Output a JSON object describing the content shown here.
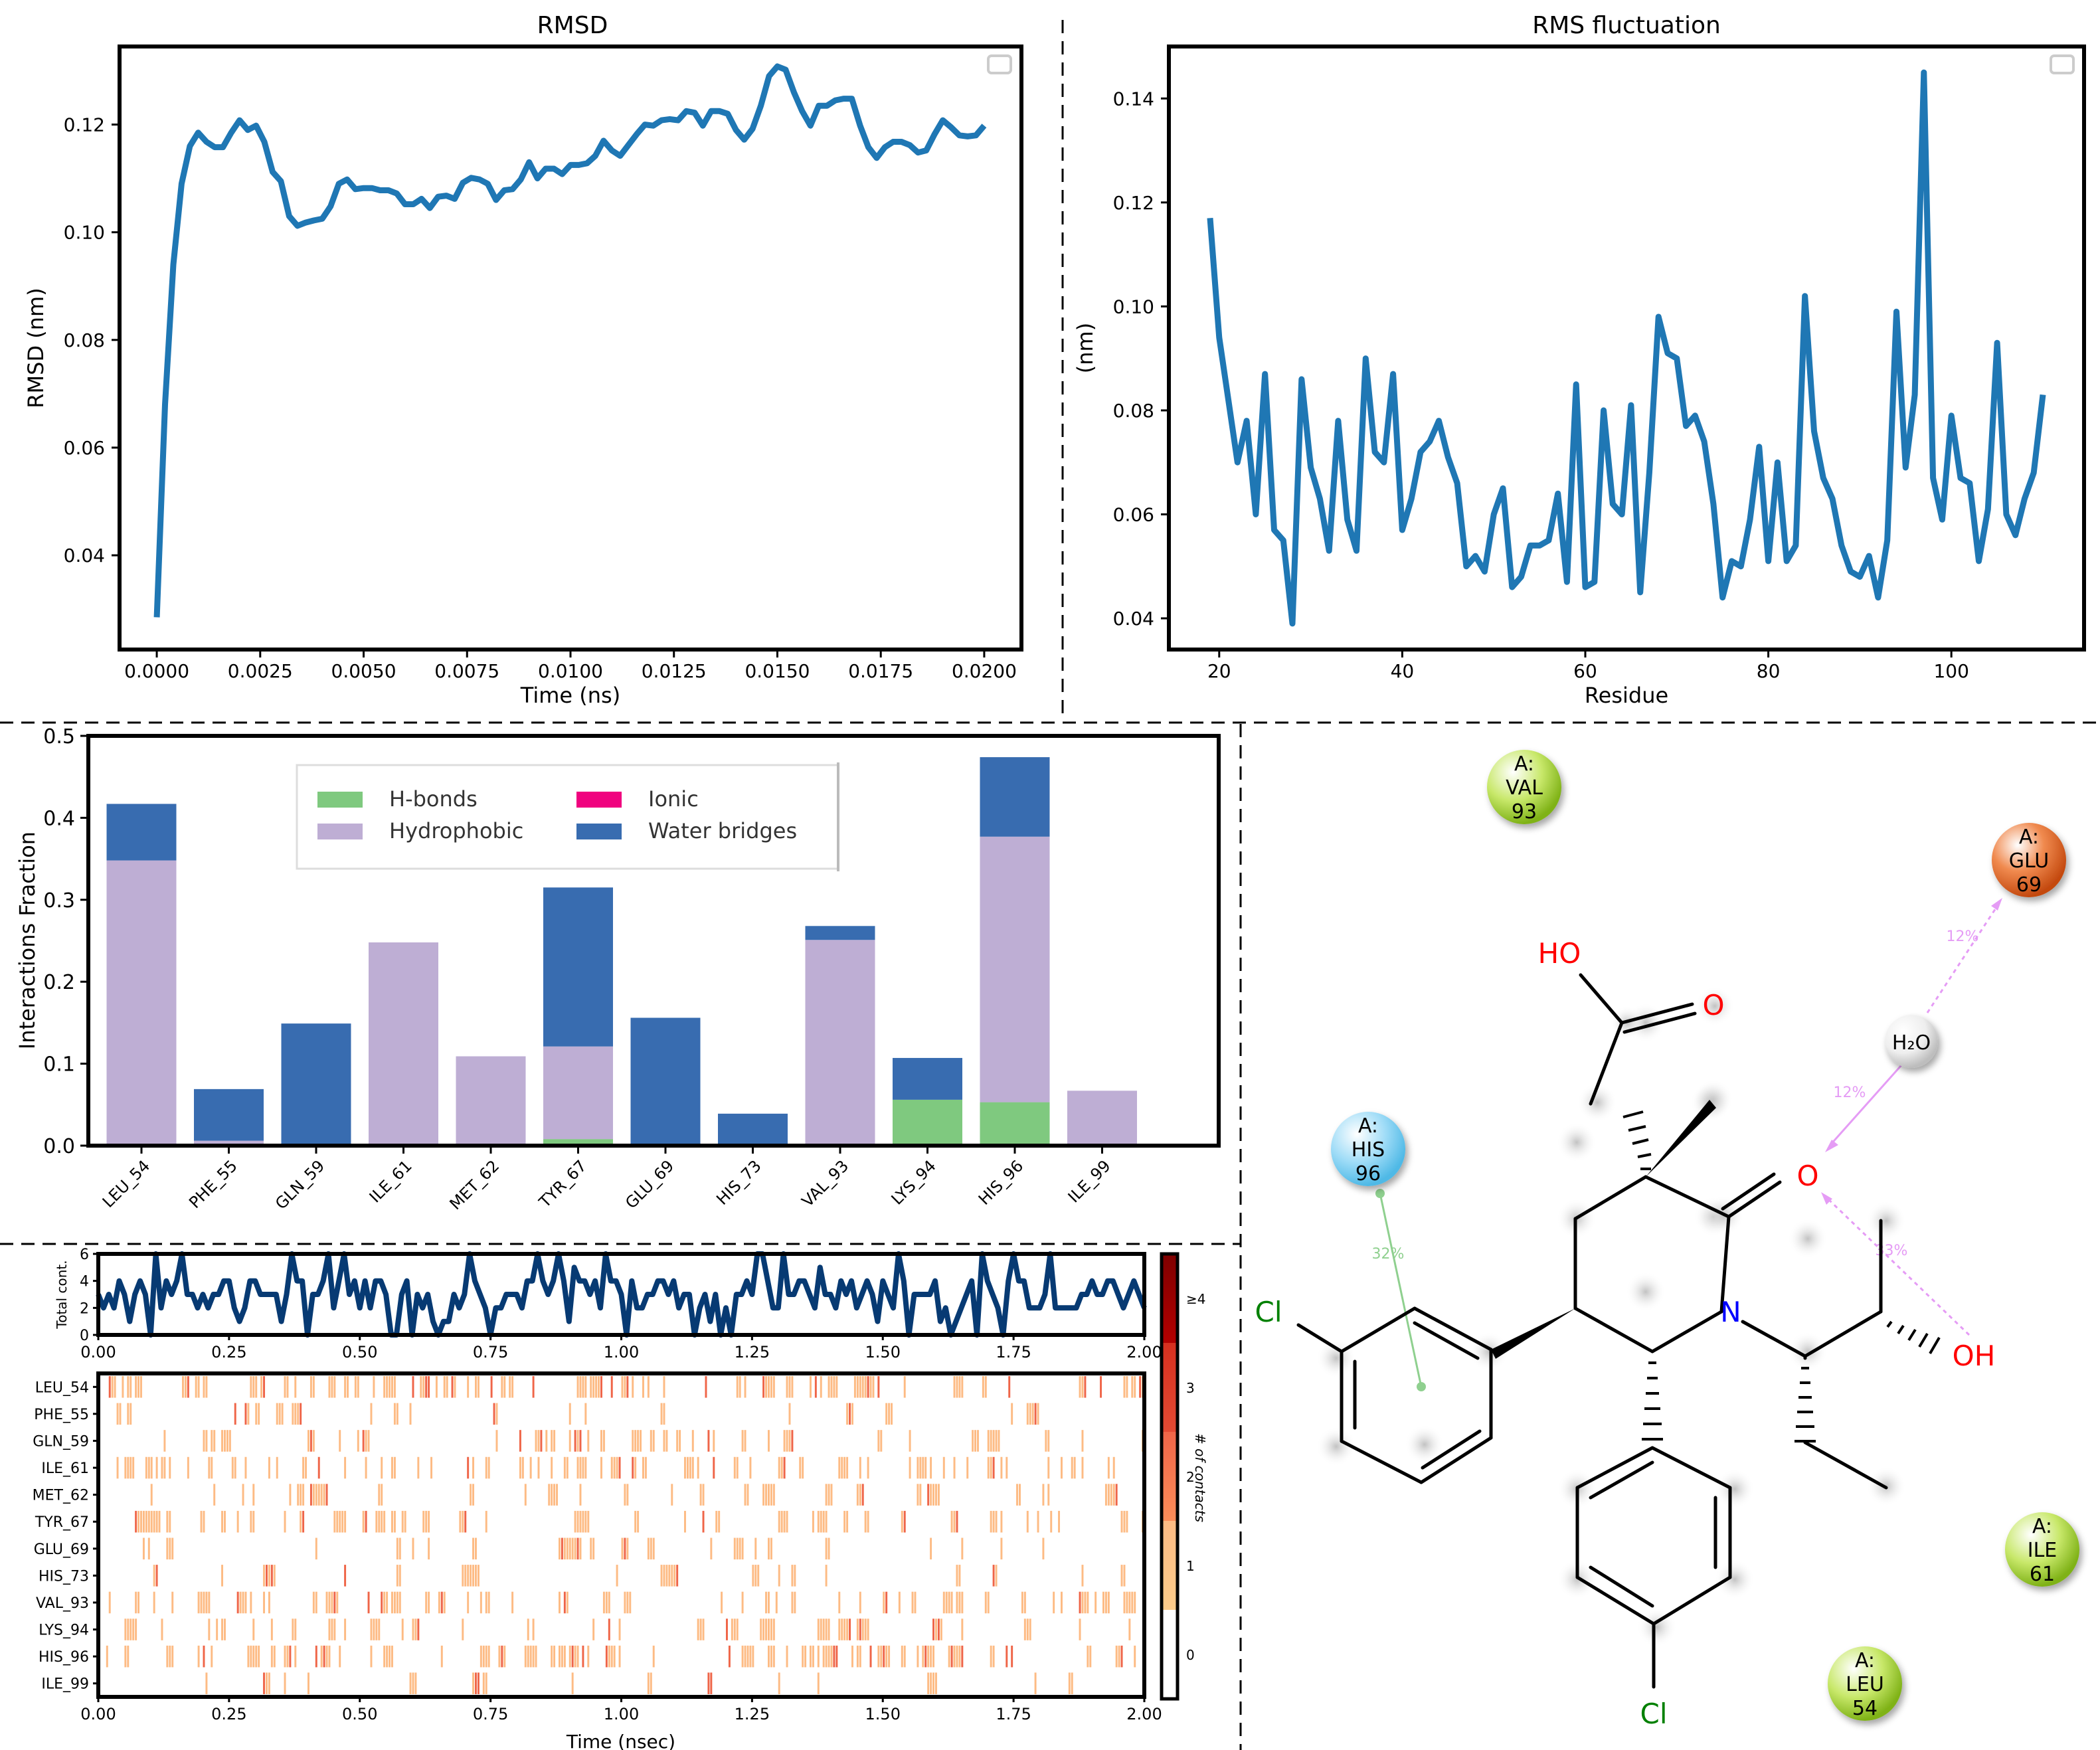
{
  "colors": {
    "line": "#1f77b4",
    "hbond": "#7fc97f",
    "hydrophobic": "#beaed4",
    "ionic": "#f0027f",
    "water": "#386cb0",
    "contact_line": "#073a73",
    "heat": [
      "#ffffff",
      "#fdbb84",
      "#ef6548",
      "#d7301f",
      "#7f0000"
    ],
    "lig_red": "#ff0000",
    "lig_blue": "#0000ff",
    "lig_green": "#008000",
    "res_green": "#a6d22e",
    "res_orange": "#e0611d",
    "res_cyan": "#6ccff6",
    "res_water": "#dddddd",
    "int_pink": "#e59cf5",
    "int_green": "#8fd08f"
  },
  "chart_data": [
    {
      "id": "rmsd",
      "type": "line",
      "title": "RMSD",
      "xlabel": "Time (ns)",
      "ylabel": "RMSD (nm)",
      "xlim": [
        -0.0009,
        0.0209
      ],
      "ylim": [
        0.0225,
        0.1345
      ],
      "xticks": [
        0.0,
        0.0025,
        0.005,
        0.0075,
        0.01,
        0.0125,
        0.015,
        0.0175,
        0.02
      ],
      "xtick_labels": [
        "0.0000",
        "0.0025",
        "0.0050",
        "0.0075",
        "0.0100",
        "0.0125",
        "0.0150",
        "0.0175",
        "0.0200"
      ],
      "yticks": [
        0.04,
        0.06,
        0.08,
        0.1,
        0.12
      ],
      "ytick_labels": [
        "0.04",
        "0.06",
        "0.08",
        "0.10",
        "0.12"
      ],
      "grid": false,
      "legend": "top-right (empty)",
      "x": [
        0.0,
        0.0002,
        0.0004,
        0.0006,
        0.0008,
        0.001,
        0.0012,
        0.0014,
        0.0016,
        0.0018,
        0.002,
        0.0022,
        0.0024,
        0.0026,
        0.0028,
        0.003,
        0.0032,
        0.0034,
        0.0036,
        0.0038,
        0.004,
        0.0042,
        0.0044,
        0.0046,
        0.0048,
        0.005,
        0.0052,
        0.0054,
        0.0056,
        0.0058,
        0.006,
        0.0062,
        0.0064,
        0.0066,
        0.0068,
        0.007,
        0.0072,
        0.0074,
        0.0076,
        0.0078,
        0.008,
        0.0082,
        0.0084,
        0.0086,
        0.0088,
        0.009,
        0.0092,
        0.0094,
        0.0096,
        0.0098,
        0.01,
        0.0102,
        0.0104,
        0.0106,
        0.0108,
        0.011,
        0.0112,
        0.0114,
        0.0116,
        0.0118,
        0.012,
        0.0122,
        0.0124,
        0.0126,
        0.0128,
        0.013,
        0.0132,
        0.0134,
        0.0136,
        0.0138,
        0.014,
        0.0142,
        0.0144,
        0.0146,
        0.0148,
        0.015,
        0.0152,
        0.0154,
        0.0156,
        0.0158,
        0.016,
        0.0162,
        0.0164,
        0.0166,
        0.0168,
        0.017,
        0.0172,
        0.0174,
        0.0176,
        0.0178,
        0.018,
        0.0182,
        0.0184,
        0.0186,
        0.0188,
        0.019,
        0.0192,
        0.0194,
        0.0196,
        0.0198,
        0.02
      ],
      "y": [
        0.0285,
        0.068,
        0.094,
        0.109,
        0.116,
        0.1185,
        0.1168,
        0.1158,
        0.1158,
        0.1185,
        0.1208,
        0.119,
        0.1198,
        0.1168,
        0.1112,
        0.1095,
        0.103,
        0.1012,
        0.1018,
        0.1022,
        0.1025,
        0.1048,
        0.109,
        0.1098,
        0.108,
        0.1082,
        0.1082,
        0.1078,
        0.1078,
        0.1072,
        0.1052,
        0.1052,
        0.1062,
        0.1045,
        0.1066,
        0.1068,
        0.1062,
        0.1092,
        0.1101,
        0.1098,
        0.109,
        0.106,
        0.1078,
        0.108,
        0.1098,
        0.113,
        0.11,
        0.1118,
        0.1118,
        0.1108,
        0.1125,
        0.1125,
        0.1128,
        0.1142,
        0.117,
        0.1152,
        0.1142,
        0.1162,
        0.1182,
        0.12,
        0.1198,
        0.1208,
        0.121,
        0.1208,
        0.1225,
        0.1222,
        0.1198,
        0.1225,
        0.1225,
        0.122,
        0.119,
        0.1172,
        0.1192,
        0.1235,
        0.129,
        0.1308,
        0.1302,
        0.126,
        0.1225,
        0.1198,
        0.1235,
        0.1235,
        0.1245,
        0.1248,
        0.1248,
        0.1198,
        0.1158,
        0.1138,
        0.1158,
        0.1168,
        0.1168,
        0.1162,
        0.1148,
        0.1152,
        0.1182,
        0.1208,
        0.1195,
        0.118,
        0.1178,
        0.118,
        0.1198
      ]
    },
    {
      "id": "rmsf",
      "type": "line",
      "title": "RMS fluctuation",
      "xlabel": "Residue",
      "ylabel": "(nm)",
      "xlim": [
        14.5,
        114.5
      ],
      "ylim": [
        0.034,
        0.15
      ],
      "xticks": [
        20,
        40,
        60,
        80,
        100
      ],
      "xtick_labels": [
        "20",
        "40",
        "60",
        "80",
        "100"
      ],
      "yticks": [
        0.04,
        0.06,
        0.08,
        0.1,
        0.12,
        0.14
      ],
      "ytick_labels": [
        "0.04",
        "0.06",
        "0.08",
        "0.10",
        "0.12",
        "0.14"
      ],
      "grid": false,
      "legend": "top-right (empty)",
      "x": [
        19,
        20,
        21,
        22,
        23,
        24,
        25,
        26,
        27,
        28,
        29,
        30,
        31,
        32,
        33,
        34,
        35,
        36,
        37,
        38,
        39,
        40,
        41,
        42,
        43,
        44,
        45,
        46,
        47,
        48,
        49,
        50,
        51,
        52,
        53,
        54,
        55,
        56,
        57,
        58,
        59,
        60,
        61,
        62,
        63,
        64,
        65,
        66,
        67,
        68,
        69,
        70,
        71,
        72,
        73,
        74,
        75,
        76,
        77,
        78,
        79,
        80,
        81,
        82,
        83,
        84,
        85,
        86,
        87,
        88,
        89,
        90,
        91,
        92,
        93,
        94,
        95,
        96,
        97,
        98,
        99,
        100,
        101,
        102,
        103,
        104,
        105,
        106,
        107,
        108,
        109,
        110
      ],
      "y": [
        0.117,
        0.094,
        0.082,
        0.07,
        0.078,
        0.06,
        0.087,
        0.057,
        0.055,
        0.039,
        0.086,
        0.069,
        0.063,
        0.053,
        0.078,
        0.059,
        0.053,
        0.09,
        0.072,
        0.07,
        0.087,
        0.057,
        0.063,
        0.072,
        0.074,
        0.078,
        0.071,
        0.066,
        0.05,
        0.052,
        0.049,
        0.06,
        0.065,
        0.046,
        0.048,
        0.054,
        0.054,
        0.055,
        0.064,
        0.047,
        0.085,
        0.046,
        0.047,
        0.08,
        0.062,
        0.06,
        0.081,
        0.045,
        0.068,
        0.098,
        0.091,
        0.09,
        0.077,
        0.079,
        0.074,
        0.062,
        0.044,
        0.051,
        0.05,
        0.059,
        0.073,
        0.051,
        0.07,
        0.051,
        0.054,
        0.102,
        0.076,
        0.067,
        0.063,
        0.054,
        0.049,
        0.048,
        0.052,
        0.044,
        0.055,
        0.099,
        0.069,
        0.083,
        0.145,
        0.067,
        0.059,
        0.079,
        0.067,
        0.066,
        0.051,
        0.061,
        0.093,
        0.06,
        0.056,
        0.063,
        0.068,
        0.083
      ]
    },
    {
      "id": "interactions",
      "type": "bar",
      "ylabel": "Interactions Fraction",
      "ylim": [
        0,
        0.5
      ],
      "yticks": [
        0.0,
        0.1,
        0.2,
        0.3,
        0.4,
        0.5
      ],
      "ytick_labels": [
        "0.0",
        "0.1",
        "0.2",
        "0.3",
        "0.4",
        "0.5"
      ],
      "legend": "top-center",
      "categories": [
        "LEU_54",
        "PHE_55",
        "GLN_59",
        "ILE_61",
        "MET_62",
        "TYR_67",
        "GLU_69",
        "HIS_73",
        "VAL_93",
        "LYS_94",
        "HIS_96",
        "ILE_99"
      ],
      "stacked": true,
      "series": [
        {
          "name": "H-bonds",
          "color_key": "hbond",
          "values": [
            0,
            0,
            0,
            0,
            0,
            0.008,
            0,
            0,
            0,
            0.056,
            0.053,
            0
          ]
        },
        {
          "name": "Hydrophobic",
          "color_key": "hydrophobic",
          "values": [
            0.348,
            0.006,
            0,
            0.248,
            0.109,
            0.113,
            0,
            0,
            0.251,
            0,
            0.324,
            0.067
          ]
        },
        {
          "name": "Ionic",
          "color_key": "ionic",
          "values": [
            0,
            0,
            0,
            0,
            0,
            0,
            0,
            0,
            0,
            0,
            0,
            0
          ]
        },
        {
          "name": "Water bridges",
          "color_key": "water",
          "values": [
            0.069,
            0.063,
            0.149,
            0,
            0,
            0.194,
            0.156,
            0.039,
            0.017,
            0.051,
            0.097,
            0
          ]
        }
      ]
    },
    {
      "id": "total_contacts",
      "type": "line",
      "ylabel": "Total cont.",
      "xlim": [
        0,
        2.0
      ],
      "ylim": [
        0,
        6
      ],
      "yticks": [
        0,
        2,
        4,
        6
      ],
      "ytick_labels": [
        "0",
        "2",
        "4",
        "6"
      ],
      "xticks": [
        0.0,
        0.25,
        0.5,
        0.75,
        1.0,
        1.25,
        1.5,
        1.75,
        2.0
      ],
      "xtick_labels": [
        "0.00",
        "0.25",
        "0.50",
        "0.75",
        "1.00",
        "1.25",
        "1.50",
        "1.75",
        "2.00"
      ],
      "sample_count": 200,
      "note_values": "approximately 0-6 contacts per frame, typically 2-4"
    },
    {
      "id": "contact_timeline",
      "type": "heatmap",
      "xlabel": "Time (nsec)",
      "xlim": [
        0,
        2.0
      ],
      "xticks": [
        0.0,
        0.25,
        0.5,
        0.75,
        1.0,
        1.25,
        1.5,
        1.75,
        2.0
      ],
      "xtick_labels": [
        "0.00",
        "0.25",
        "0.50",
        "0.75",
        "1.00",
        "1.25",
        "1.50",
        "1.75",
        "2.00"
      ],
      "rows": [
        "LEU_54",
        "PHE_55",
        "GLN_59",
        "ILE_61",
        "MET_62",
        "TYR_67",
        "GLU_69",
        "HIS_73",
        "VAL_93",
        "LYS_94",
        "HIS_96",
        "ILE_99"
      ],
      "row_density": [
        0.32,
        0.12,
        0.18,
        0.3,
        0.14,
        0.24,
        0.12,
        0.1,
        0.25,
        0.14,
        0.34,
        0.07
      ],
      "colorbar": {
        "label": "# of contacts",
        "ticks": [
          "0",
          "1",
          "2",
          "3",
          "≥4"
        ]
      }
    }
  ],
  "ligand_diagram": {
    "residues": [
      {
        "chain": "A:",
        "name": "VAL",
        "num": "93",
        "color_key": "res_green"
      },
      {
        "chain": "A:",
        "name": "GLU",
        "num": "69",
        "color_key": "res_orange"
      },
      {
        "chain": "A:",
        "name": "HIS",
        "num": "96",
        "color_key": "res_cyan"
      },
      {
        "chain": "A:",
        "name": "ILE",
        "num": "61",
        "color_key": "res_green"
      },
      {
        "chain": "A:",
        "name": "LEU",
        "num": "54",
        "color_key": "res_green"
      }
    ],
    "water": {
      "label": "H₂O"
    },
    "atoms": {
      "ho": "HO",
      "o_acid": "O",
      "o_keto": "O",
      "n": "N",
      "oh": "OH",
      "cl_top": "Cl",
      "cl_bottom": "Cl"
    },
    "interaction_labels": {
      "glu_water": "12%",
      "water_o": "12%",
      "oh_o": "33%",
      "his_pi": "32%"
    }
  }
}
